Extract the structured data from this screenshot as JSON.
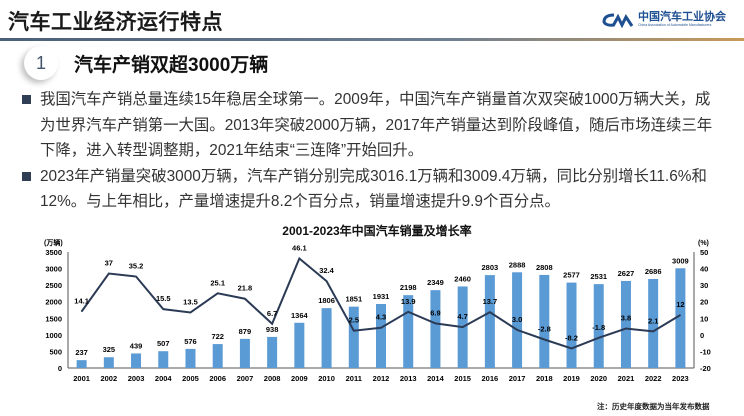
{
  "header": {
    "title": "汽车工业经济运行特点"
  },
  "logo": {
    "cn": "中国汽车工业协会",
    "en": "China Association of Automobile Manufacturers",
    "mark": "CAAM",
    "color": "#1d4f91"
  },
  "section": {
    "number": "1",
    "title": "汽车产销双超3000万辆"
  },
  "bullets": [
    "我国汽车产销总量连续15年稳居全球第一。2009年，中国汽车产销量首次双突破1000万辆大关，成为世界汽车产销第一大国。2013年突破2000万辆，2017年产销量达到阶段峰值，随后市场连续三年下降，进入转型调整期，2021年结束“三连降”开始回升。",
    "2023年产销量突破3000万辆，汽车产销分别完成3016.1万辆和3009.4万辆，同比分别增长11.6%和12%。与上年相比，产量增速提升8.2个百分点，销量增速提升9.9个百分点。"
  ],
  "chart_data": {
    "type": "bar+line",
    "title": "2001-2023年中国汽车销量及增长率",
    "categories": [
      "2001",
      "2002",
      "2003",
      "2004",
      "2005",
      "2006",
      "2007",
      "2008",
      "2009",
      "2010",
      "2011",
      "2012",
      "2013",
      "2014",
      "2015",
      "2016",
      "2017",
      "2018",
      "2019",
      "2020",
      "2021",
      "2022",
      "2023"
    ],
    "series": [
      {
        "type": "bar",
        "axis": "left",
        "color": "#5b9bd5",
        "values": [
          237,
          325,
          439,
          507,
          576,
          722,
          879,
          938,
          1364,
          1806,
          1851,
          1931,
          2198,
          2349,
          2460,
          2803,
          2888,
          2808,
          2577,
          2531,
          2627,
          2686,
          3009
        ]
      },
      {
        "type": "line",
        "axis": "right",
        "color": "#2b3a55",
        "values": [
          14.1,
          37,
          35.2,
          15.5,
          13.5,
          25.1,
          21.8,
          6.7,
          46.1,
          32.4,
          2.5,
          4.3,
          13.9,
          6.9,
          4.7,
          13.7,
          3.0,
          -2.8,
          -8.2,
          -1.8,
          3.8,
          2.1,
          12
        ],
        "labels": [
          "14.1",
          "37",
          "35.2",
          "15.5",
          "13.5",
          "25.1",
          "21.8",
          "6.7",
          "46.1",
          "32.4",
          "2.5",
          "4.3",
          "13.9",
          "6.9",
          "4.7",
          "13.7",
          "3.0",
          "-2.8",
          "-8.2",
          "-1.8",
          "3.8",
          "2.1",
          "12"
        ]
      }
    ],
    "y_left": {
      "label": "(万辆)",
      "range": [
        0,
        3500
      ],
      "ticks": [
        "0",
        "500",
        "1000",
        "1500",
        "2000",
        "2500",
        "3000",
        "3500"
      ]
    },
    "y_right": {
      "label": "(%)",
      "range": [
        -20,
        50
      ],
      "ticks": [
        "-20",
        "-10",
        "0",
        "10",
        "20",
        "30",
        "40",
        "50"
      ]
    },
    "grid": false,
    "legend": "none"
  },
  "footnote": "注：历史年度数据为当年发布数据"
}
